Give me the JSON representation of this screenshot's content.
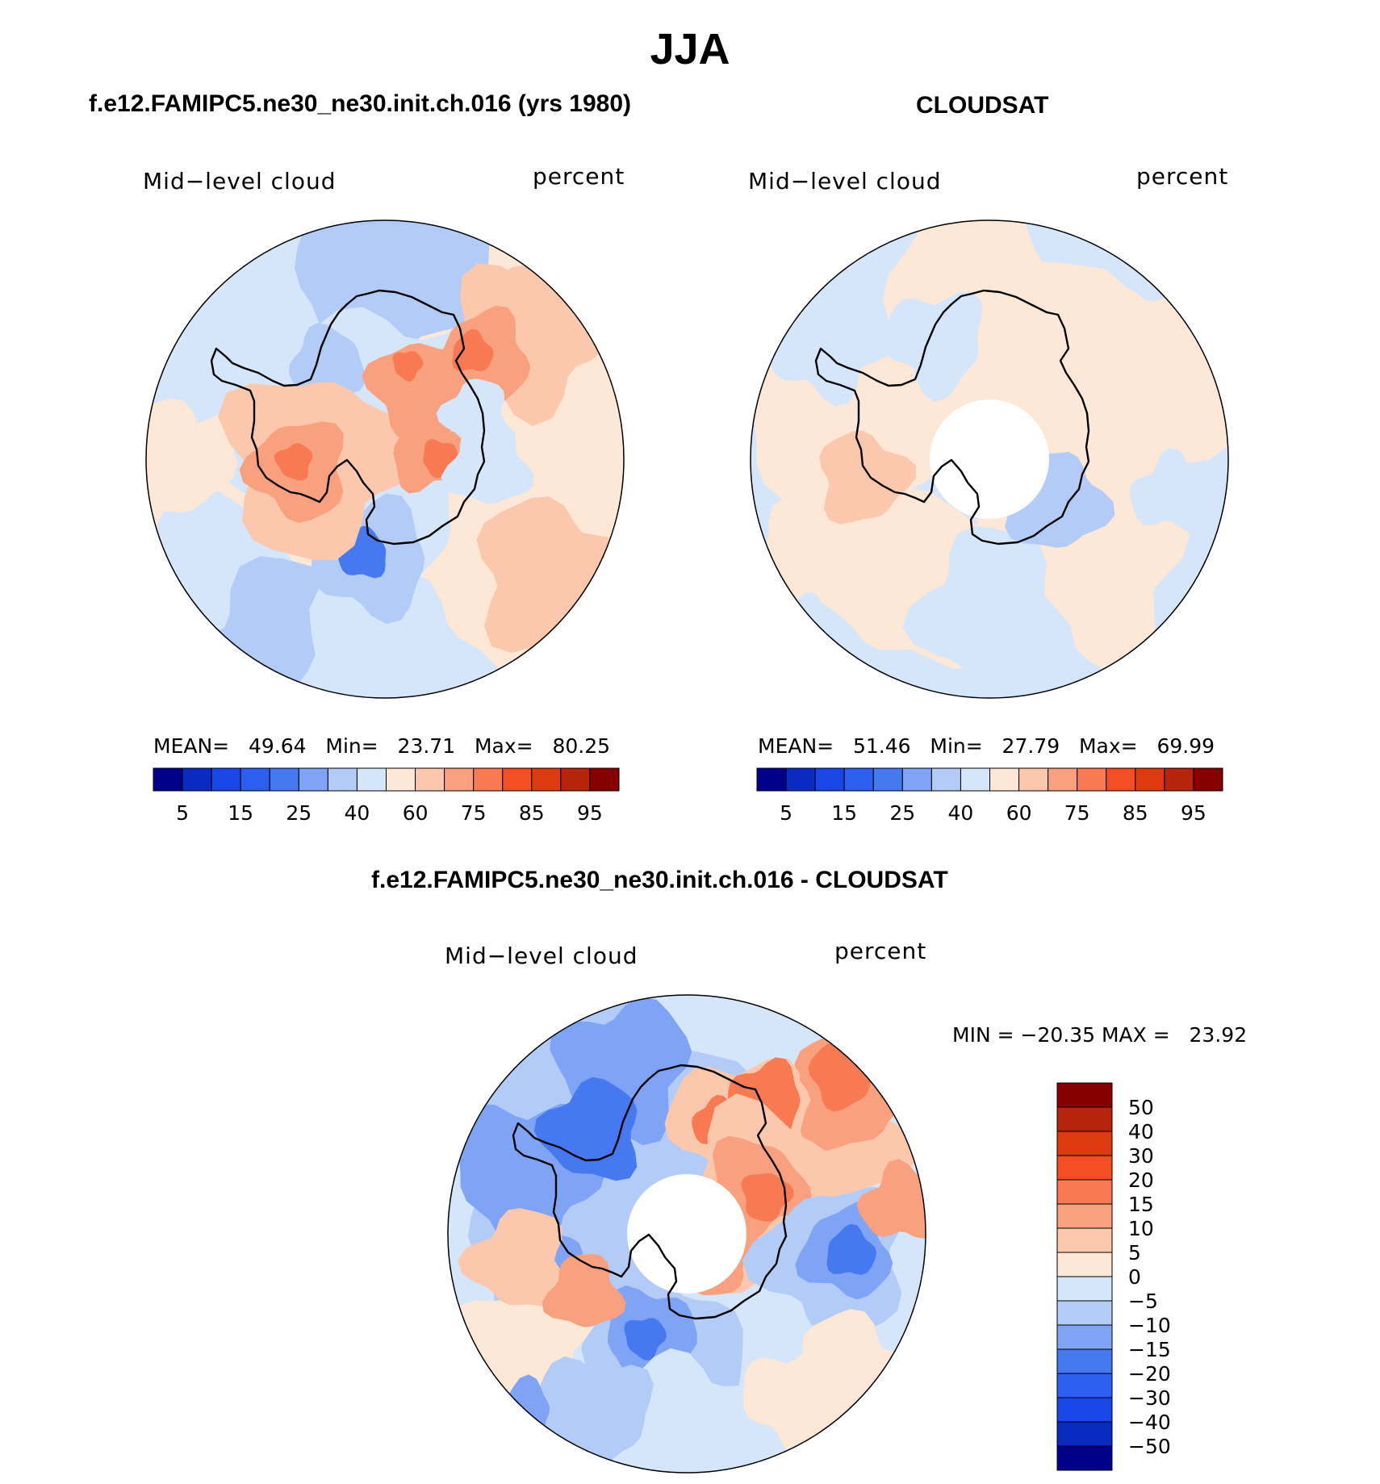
{
  "title": "JJA",
  "colors": {
    "abs_palette": [
      "#00008b",
      "#0a2ac4",
      "#1a46e8",
      "#2c5ff0",
      "#4678f0",
      "#7fa3f5",
      "#b3cbf7",
      "#d6e6fa",
      "#fde7d7",
      "#fcc8ad",
      "#f9a07e",
      "#f87a52",
      "#f44e25",
      "#dc3a10",
      "#b7240c",
      "#870000"
    ],
    "diff_palette": [
      "#00008b",
      "#0a2ac4",
      "#1a46e8",
      "#2c5ff0",
      "#4678f0",
      "#7fa3f5",
      "#b3cbf7",
      "#d6e6fa",
      "#fde7d7",
      "#fcc8ad",
      "#f9a07e",
      "#f87a52",
      "#f44e25",
      "#dc3a10",
      "#b7240c",
      "#870000"
    ],
    "land_outline": "#000000"
  },
  "chart_data": [
    {
      "id": "model",
      "type": "heatmap",
      "projection": "south-polar-stereographic",
      "title": "f.e12.FAMIPC5.ne30_ne30.init.ch.016 (yrs 1980)",
      "variable_label": "Mid−level cloud",
      "units_label": "percent",
      "stats": {
        "mean_label": "MEAN=",
        "mean": "49.64",
        "min_label": "Min=",
        "min": "23.71",
        "max_label": "Max=",
        "max": "80.25"
      },
      "levels": [
        5,
        10,
        15,
        20,
        25,
        30,
        40,
        50,
        60,
        70,
        75,
        80,
        85,
        90,
        95
      ],
      "tick_labels": [
        "5",
        "15",
        "25",
        "40",
        "60",
        "75",
        "85",
        "95"
      ],
      "polar_hole": false
    },
    {
      "id": "obs",
      "type": "heatmap",
      "projection": "south-polar-stereographic",
      "title": "CLOUDSAT",
      "variable_label": "Mid−level cloud",
      "units_label": "percent",
      "stats": {
        "mean_label": "MEAN=",
        "mean": "51.46",
        "min_label": "Min=",
        "min": "27.79",
        "max_label": "Max=",
        "max": "69.99"
      },
      "levels": [
        5,
        10,
        15,
        20,
        25,
        30,
        40,
        50,
        60,
        70,
        75,
        80,
        85,
        90,
        95
      ],
      "tick_labels": [
        "5",
        "15",
        "25",
        "40",
        "60",
        "75",
        "85",
        "95"
      ],
      "polar_hole": true
    },
    {
      "id": "diff",
      "type": "heatmap",
      "projection": "south-polar-stereographic",
      "title": "f.e12.FAMIPC5.ne30_ne30.init.ch.016 - CLOUDSAT",
      "variable_label": "Mid−level cloud",
      "units_label": "percent",
      "stats": {
        "min_label": "MIN =",
        "min": "−20.35",
        "max_label": "MAX =",
        "max": "23.92"
      },
      "levels": [
        -50,
        -40,
        -30,
        -20,
        -15,
        -10,
        -5,
        0,
        5,
        10,
        15,
        20,
        30,
        40,
        50
      ],
      "tick_labels": [
        "50",
        "40",
        "30",
        "20",
        "15",
        "10",
        "5",
        "0",
        "−5",
        "−10",
        "−15",
        "−20",
        "−30",
        "−40",
        "−50"
      ],
      "polar_hole": true
    }
  ]
}
